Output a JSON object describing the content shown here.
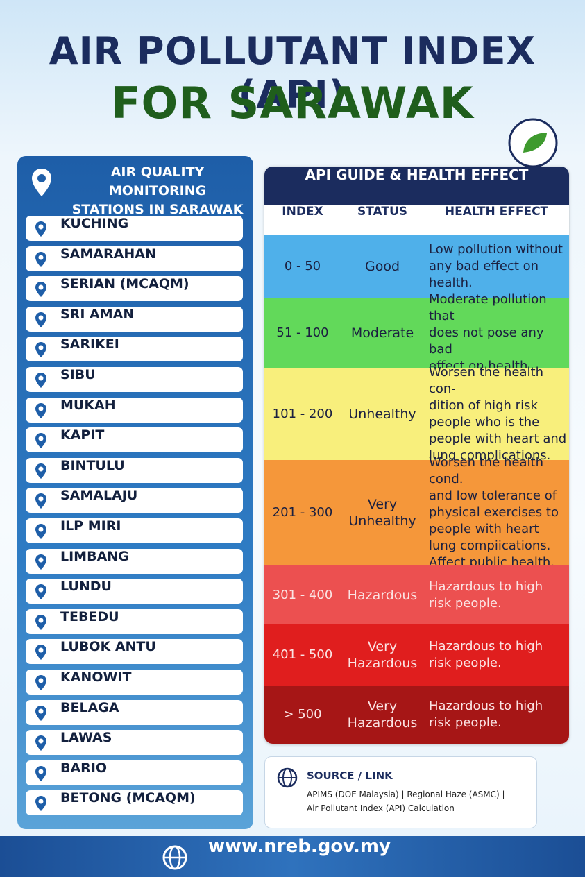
{
  "header": {
    "title_line1": "AIR POLLUTANT INDEX (API)",
    "title_line2": "FOR SARAWAK"
  },
  "stations": {
    "title": "AIR QUALITY MONITORING\nSTATIONS IN SARAWAK",
    "items": [
      "KUCHING",
      "SAMARAHAN",
      "SERIAN (MCAQM)",
      "SRI AMAN",
      "SARIKEI",
      "SIBU",
      "MUKAH",
      "KAPIT",
      "BINTULU",
      "SAMALAJU",
      "ILP MIRI",
      "LIMBANG",
      "LUNDU",
      "TEBEDU",
      "LUBOK ANTU",
      "KANOWIT",
      "BELAGA",
      "LAWAS",
      "BARIO",
      "BETONG (MCAQM)"
    ]
  },
  "api_guide": {
    "title": "API GUIDE & HEALTH EFFECT",
    "columns": [
      "INDEX",
      "STATUS",
      "HEALTH EFFECT"
    ],
    "rows": [
      {
        "index": "0 - 50",
        "status": "Good",
        "effect": "Low pollution without\nany bad effect on\nhealth.",
        "color": "#4fb0ea"
      },
      {
        "index": "51 - 100",
        "status": "Moderate",
        "effect": "Moderate pollution that\ndoes not pose any bad\neffect on health.",
        "color": "#62d95a"
      },
      {
        "index": "101 - 200",
        "status": "Unhealthy",
        "effect": "Worsen the health con-\ndition of high risk\npeople who is the\npeople with heart and\nlung complications.",
        "color": "#f8ef7c"
      },
      {
        "index": "201 - 300",
        "status": "Very\nUnhealthy",
        "effect": "Worsen the health cond.\nand low tolerance of\nphysical  exercises to\npeople with heart\nlung compiications.\nAffect public health.",
        "color": "#f5973a"
      },
      {
        "index": "301 - 400",
        "status": "Hazardous",
        "effect": "Hazardous to high\nrisk people.",
        "color": "#ec5050"
      },
      {
        "index": "401 - 500",
        "status": "Very\nHazardous",
        "effect": "Hazardous to high\nrisk people.",
        "color": "#e01e1e"
      },
      {
        "index": "> 500",
        "status": "Very\nHazardous",
        "effect": "Hazardous to high\nrisk people.",
        "color": "#a61616"
      }
    ]
  },
  "source": {
    "title": "SOURCE / LINK",
    "text": "APIMS (DOE Malaysia) | Regional Haze (ASMC) |\nAir Pollutant Index (API) Calculation"
  },
  "footer": {
    "url": "www.nreb.gov.my"
  }
}
